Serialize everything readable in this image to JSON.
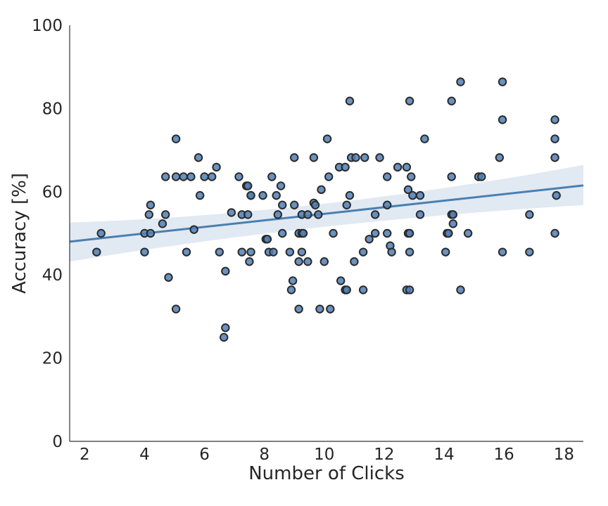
{
  "chart_data": {
    "type": "scatter",
    "title": "",
    "xlabel": "Number of Clicks",
    "ylabel": "Accuracy [%]",
    "xlim": [
      1.5,
      18.65
    ],
    "ylim": [
      0,
      100
    ],
    "xticks": [
      2,
      4,
      6,
      8,
      10,
      12,
      14,
      16,
      18
    ],
    "yticks": [
      0,
      20,
      40,
      60,
      80,
      100
    ],
    "grid": false,
    "marker_color": "#4f7fb5",
    "line_color": "#4a7fb0",
    "band_color": "#c8d7ea",
    "regression": {
      "x": [
        1.5,
        18.65
      ],
      "y": [
        48.0,
        61.5
      ],
      "ci_lower": [
        43.2,
        56.8
      ],
      "ci_upper": [
        52.6,
        66.4
      ],
      "ci_mid": [
        9.5,
        51.6,
        55.6
      ]
    },
    "points": [
      [
        2.4,
        45.5
      ],
      [
        2.55,
        50.0
      ],
      [
        4.0,
        45.5
      ],
      [
        4.0,
        50.0
      ],
      [
        4.15,
        54.5
      ],
      [
        4.2,
        56.8
      ],
      [
        4.2,
        50.0
      ],
      [
        4.6,
        52.3
      ],
      [
        4.7,
        54.5
      ],
      [
        4.7,
        63.6
      ],
      [
        4.8,
        39.4
      ],
      [
        5.05,
        72.7
      ],
      [
        5.05,
        63.6
      ],
      [
        5.05,
        31.8
      ],
      [
        5.3,
        63.6
      ],
      [
        5.4,
        45.5
      ],
      [
        5.55,
        63.6
      ],
      [
        5.65,
        50.9
      ],
      [
        5.8,
        68.2
      ],
      [
        5.85,
        59.1
      ],
      [
        6.0,
        63.6
      ],
      [
        6.25,
        63.6
      ],
      [
        6.4,
        65.9
      ],
      [
        6.5,
        45.5
      ],
      [
        6.65,
        25.0
      ],
      [
        6.7,
        27.3
      ],
      [
        6.7,
        40.9
      ],
      [
        6.9,
        55.0
      ],
      [
        7.15,
        63.6
      ],
      [
        7.25,
        45.5
      ],
      [
        7.25,
        54.5
      ],
      [
        7.4,
        61.4
      ],
      [
        7.45,
        61.4
      ],
      [
        7.45,
        54.5
      ],
      [
        7.5,
        43.2
      ],
      [
        7.55,
        59.1
      ],
      [
        7.55,
        59.1
      ],
      [
        7.55,
        45.5
      ],
      [
        7.95,
        59.1
      ],
      [
        8.05,
        48.6
      ],
      [
        8.1,
        48.6
      ],
      [
        8.15,
        45.5
      ],
      [
        8.25,
        63.6
      ],
      [
        8.3,
        45.5
      ],
      [
        8.4,
        59.1
      ],
      [
        8.45,
        54.5
      ],
      [
        8.55,
        61.4
      ],
      [
        8.6,
        56.8
      ],
      [
        8.6,
        50.0
      ],
      [
        8.85,
        45.5
      ],
      [
        8.9,
        36.4
      ],
      [
        8.95,
        38.6
      ],
      [
        9.0,
        56.8
      ],
      [
        9.0,
        68.2
      ],
      [
        9.15,
        31.8
      ],
      [
        9.15,
        50.0
      ],
      [
        9.15,
        43.2
      ],
      [
        9.25,
        50.0
      ],
      [
        9.25,
        54.5
      ],
      [
        9.25,
        45.5
      ],
      [
        9.3,
        50.0
      ],
      [
        9.45,
        54.5
      ],
      [
        9.45,
        43.2
      ],
      [
        9.65,
        68.2
      ],
      [
        9.65,
        57.3
      ],
      [
        9.7,
        56.8
      ],
      [
        9.8,
        54.5
      ],
      [
        9.85,
        31.8
      ],
      [
        9.9,
        60.5
      ],
      [
        10.0,
        43.2
      ],
      [
        10.1,
        72.7
      ],
      [
        10.15,
        63.6
      ],
      [
        10.2,
        31.8
      ],
      [
        10.3,
        50.0
      ],
      [
        10.5,
        65.9
      ],
      [
        10.55,
        38.6
      ],
      [
        10.7,
        65.9
      ],
      [
        10.7,
        36.4
      ],
      [
        10.75,
        36.4
      ],
      [
        10.75,
        56.8
      ],
      [
        10.85,
        81.8
      ],
      [
        10.85,
        59.1
      ],
      [
        10.9,
        68.2
      ],
      [
        11.0,
        43.2
      ],
      [
        11.05,
        68.2
      ],
      [
        11.3,
        45.5
      ],
      [
        11.3,
        36.4
      ],
      [
        11.35,
        68.2
      ],
      [
        11.5,
        48.6
      ],
      [
        11.7,
        54.5
      ],
      [
        11.7,
        50.0
      ],
      [
        11.85,
        68.2
      ],
      [
        12.1,
        63.6
      ],
      [
        12.1,
        56.8
      ],
      [
        12.1,
        50.0
      ],
      [
        12.2,
        47.0
      ],
      [
        12.25,
        45.5
      ],
      [
        12.45,
        65.9
      ],
      [
        12.75,
        65.9
      ],
      [
        12.75,
        36.4
      ],
      [
        12.8,
        60.5
      ],
      [
        12.8,
        50.0
      ],
      [
        12.85,
        50.0
      ],
      [
        12.85,
        45.5
      ],
      [
        12.85,
        36.4
      ],
      [
        12.85,
        81.8
      ],
      [
        12.9,
        63.6
      ],
      [
        12.95,
        59.1
      ],
      [
        13.2,
        59.1
      ],
      [
        13.2,
        54.5
      ],
      [
        13.35,
        72.7
      ],
      [
        14.05,
        45.5
      ],
      [
        14.1,
        50.0
      ],
      [
        14.15,
        50.0
      ],
      [
        14.25,
        81.8
      ],
      [
        14.25,
        63.6
      ],
      [
        14.25,
        54.5
      ],
      [
        14.3,
        54.5
      ],
      [
        14.3,
        52.3
      ],
      [
        14.55,
        86.4
      ],
      [
        14.55,
        36.4
      ],
      [
        14.8,
        50.0
      ],
      [
        15.15,
        63.6
      ],
      [
        15.25,
        63.6
      ],
      [
        15.85,
        68.2
      ],
      [
        15.95,
        86.4
      ],
      [
        15.95,
        77.3
      ],
      [
        15.95,
        45.5
      ],
      [
        16.85,
        54.5
      ],
      [
        16.85,
        45.5
      ],
      [
        17.7,
        77.3
      ],
      [
        17.7,
        72.7
      ],
      [
        17.7,
        68.2
      ],
      [
        17.75,
        59.1
      ],
      [
        17.7,
        50.0
      ]
    ]
  }
}
